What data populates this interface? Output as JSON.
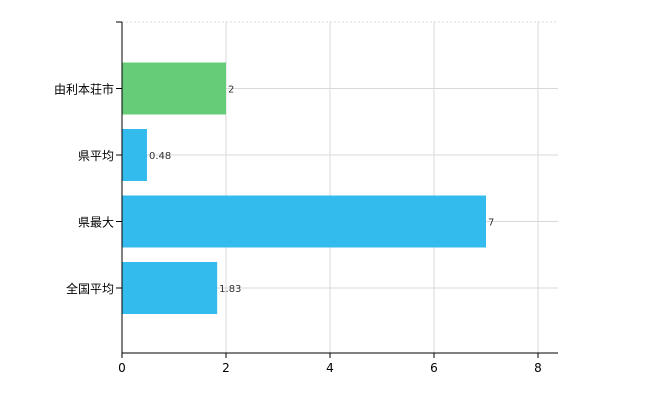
{
  "chart_data": {
    "type": "bar",
    "orientation": "horizontal",
    "categories": [
      "由利本荘市",
      "県平均",
      "県最大",
      "全国平均"
    ],
    "values": [
      2,
      0.48,
      7,
      1.83
    ],
    "value_labels": [
      "2",
      "0.48",
      "7",
      "1.83"
    ],
    "bar_colors": [
      "#66cc77",
      "#33bbee",
      "#33bbee",
      "#33bbee"
    ],
    "xlim": [
      0,
      8
    ],
    "xticks": [
      0,
      2,
      4,
      6,
      8
    ],
    "xtick_labels": [
      "0",
      "2",
      "4",
      "6",
      "8"
    ],
    "grid": true,
    "legend": "none"
  }
}
